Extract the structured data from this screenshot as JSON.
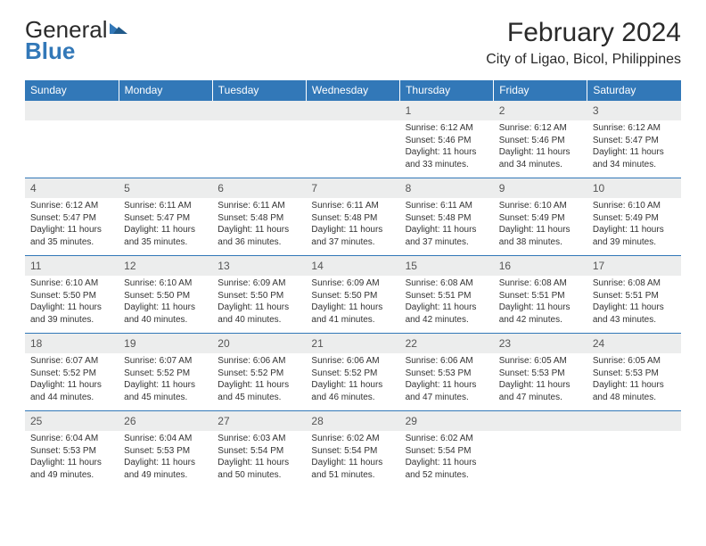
{
  "logo": {
    "text_general": "General",
    "text_blue": "Blue",
    "icon_color": "#3278b8"
  },
  "header": {
    "month_title": "February 2024",
    "location": "City of Ligao, Bicol, Philippines"
  },
  "colors": {
    "header_bg": "#3278b8",
    "daynum_bg": "#eceded",
    "row_divider": "#3278b8",
    "text": "#2a2a2a"
  },
  "calendar": {
    "day_headers": [
      "Sunday",
      "Monday",
      "Tuesday",
      "Wednesday",
      "Thursday",
      "Friday",
      "Saturday"
    ],
    "weeks": [
      [
        null,
        null,
        null,
        null,
        {
          "d": "1",
          "sr": "Sunrise: 6:12 AM",
          "ss": "Sunset: 5:46 PM",
          "dl": "Daylight: 11 hours and 33 minutes."
        },
        {
          "d": "2",
          "sr": "Sunrise: 6:12 AM",
          "ss": "Sunset: 5:46 PM",
          "dl": "Daylight: 11 hours and 34 minutes."
        },
        {
          "d": "3",
          "sr": "Sunrise: 6:12 AM",
          "ss": "Sunset: 5:47 PM",
          "dl": "Daylight: 11 hours and 34 minutes."
        }
      ],
      [
        {
          "d": "4",
          "sr": "Sunrise: 6:12 AM",
          "ss": "Sunset: 5:47 PM",
          "dl": "Daylight: 11 hours and 35 minutes."
        },
        {
          "d": "5",
          "sr": "Sunrise: 6:11 AM",
          "ss": "Sunset: 5:47 PM",
          "dl": "Daylight: 11 hours and 35 minutes."
        },
        {
          "d": "6",
          "sr": "Sunrise: 6:11 AM",
          "ss": "Sunset: 5:48 PM",
          "dl": "Daylight: 11 hours and 36 minutes."
        },
        {
          "d": "7",
          "sr": "Sunrise: 6:11 AM",
          "ss": "Sunset: 5:48 PM",
          "dl": "Daylight: 11 hours and 37 minutes."
        },
        {
          "d": "8",
          "sr": "Sunrise: 6:11 AM",
          "ss": "Sunset: 5:48 PM",
          "dl": "Daylight: 11 hours and 37 minutes."
        },
        {
          "d": "9",
          "sr": "Sunrise: 6:10 AM",
          "ss": "Sunset: 5:49 PM",
          "dl": "Daylight: 11 hours and 38 minutes."
        },
        {
          "d": "10",
          "sr": "Sunrise: 6:10 AM",
          "ss": "Sunset: 5:49 PM",
          "dl": "Daylight: 11 hours and 39 minutes."
        }
      ],
      [
        {
          "d": "11",
          "sr": "Sunrise: 6:10 AM",
          "ss": "Sunset: 5:50 PM",
          "dl": "Daylight: 11 hours and 39 minutes."
        },
        {
          "d": "12",
          "sr": "Sunrise: 6:10 AM",
          "ss": "Sunset: 5:50 PM",
          "dl": "Daylight: 11 hours and 40 minutes."
        },
        {
          "d": "13",
          "sr": "Sunrise: 6:09 AM",
          "ss": "Sunset: 5:50 PM",
          "dl": "Daylight: 11 hours and 40 minutes."
        },
        {
          "d": "14",
          "sr": "Sunrise: 6:09 AM",
          "ss": "Sunset: 5:50 PM",
          "dl": "Daylight: 11 hours and 41 minutes."
        },
        {
          "d": "15",
          "sr": "Sunrise: 6:08 AM",
          "ss": "Sunset: 5:51 PM",
          "dl": "Daylight: 11 hours and 42 minutes."
        },
        {
          "d": "16",
          "sr": "Sunrise: 6:08 AM",
          "ss": "Sunset: 5:51 PM",
          "dl": "Daylight: 11 hours and 42 minutes."
        },
        {
          "d": "17",
          "sr": "Sunrise: 6:08 AM",
          "ss": "Sunset: 5:51 PM",
          "dl": "Daylight: 11 hours and 43 minutes."
        }
      ],
      [
        {
          "d": "18",
          "sr": "Sunrise: 6:07 AM",
          "ss": "Sunset: 5:52 PM",
          "dl": "Daylight: 11 hours and 44 minutes."
        },
        {
          "d": "19",
          "sr": "Sunrise: 6:07 AM",
          "ss": "Sunset: 5:52 PM",
          "dl": "Daylight: 11 hours and 45 minutes."
        },
        {
          "d": "20",
          "sr": "Sunrise: 6:06 AM",
          "ss": "Sunset: 5:52 PM",
          "dl": "Daylight: 11 hours and 45 minutes."
        },
        {
          "d": "21",
          "sr": "Sunrise: 6:06 AM",
          "ss": "Sunset: 5:52 PM",
          "dl": "Daylight: 11 hours and 46 minutes."
        },
        {
          "d": "22",
          "sr": "Sunrise: 6:06 AM",
          "ss": "Sunset: 5:53 PM",
          "dl": "Daylight: 11 hours and 47 minutes."
        },
        {
          "d": "23",
          "sr": "Sunrise: 6:05 AM",
          "ss": "Sunset: 5:53 PM",
          "dl": "Daylight: 11 hours and 47 minutes."
        },
        {
          "d": "24",
          "sr": "Sunrise: 6:05 AM",
          "ss": "Sunset: 5:53 PM",
          "dl": "Daylight: 11 hours and 48 minutes."
        }
      ],
      [
        {
          "d": "25",
          "sr": "Sunrise: 6:04 AM",
          "ss": "Sunset: 5:53 PM",
          "dl": "Daylight: 11 hours and 49 minutes."
        },
        {
          "d": "26",
          "sr": "Sunrise: 6:04 AM",
          "ss": "Sunset: 5:53 PM",
          "dl": "Daylight: 11 hours and 49 minutes."
        },
        {
          "d": "27",
          "sr": "Sunrise: 6:03 AM",
          "ss": "Sunset: 5:54 PM",
          "dl": "Daylight: 11 hours and 50 minutes."
        },
        {
          "d": "28",
          "sr": "Sunrise: 6:02 AM",
          "ss": "Sunset: 5:54 PM",
          "dl": "Daylight: 11 hours and 51 minutes."
        },
        {
          "d": "29",
          "sr": "Sunrise: 6:02 AM",
          "ss": "Sunset: 5:54 PM",
          "dl": "Daylight: 11 hours and 52 minutes."
        },
        null,
        null
      ]
    ]
  }
}
